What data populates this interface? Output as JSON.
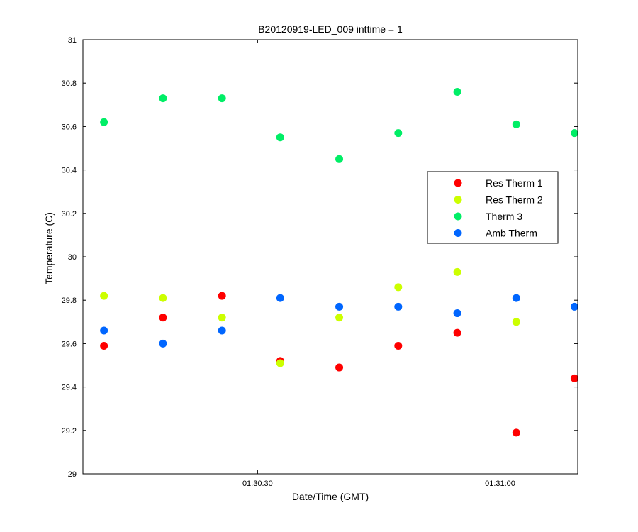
{
  "chart_data": {
    "type": "scatter",
    "title": "B20120919-LED_009 inttime = 1",
    "xlabel": "Date/Time (GMT)",
    "ylabel": "Temperature (C)",
    "ylim": [
      29,
      31
    ],
    "yticks": [
      29,
      29.2,
      29.4,
      29.6,
      29.8,
      30,
      30.2,
      30.4,
      30.6,
      30.8,
      31
    ],
    "ytick_labels": [
      "29",
      "29.2",
      "29.4",
      "29.6",
      "29.8",
      "30",
      "30.2",
      "30.4",
      "30.6",
      "30.8",
      "31"
    ],
    "xlim": [
      "01:30:08.4",
      "01:31:09.6"
    ],
    "xticks": [
      "01:30:30",
      "01:31:00"
    ],
    "xtick_labels": [
      "01:30:30",
      "01:31:00"
    ],
    "x": [
      "01:30:11",
      "01:30:18.3",
      "01:30:25.6",
      "01:30:32.8",
      "01:30:40.1",
      "01:30:47.4",
      "01:30:54.7",
      "01:31:02",
      "01:31:09.2"
    ],
    "legend_position": "right",
    "grid": false,
    "series": [
      {
        "name": "Res Therm 1",
        "color": "#ff0000",
        "values": [
          29.59,
          29.72,
          29.82,
          29.52,
          29.49,
          29.59,
          29.65,
          29.19,
          29.44
        ]
      },
      {
        "name": "Res Therm 2",
        "color": "#ccff00",
        "values": [
          29.82,
          29.81,
          29.72,
          29.51,
          29.72,
          29.86,
          29.93,
          29.7,
          null
        ]
      },
      {
        "name": "Therm 3",
        "color": "#00ee66",
        "values": [
          30.62,
          30.73,
          30.73,
          30.55,
          30.45,
          30.57,
          30.76,
          30.61,
          30.57
        ]
      },
      {
        "name": "Amb Therm",
        "color": "#0066ff",
        "values": [
          29.66,
          29.6,
          29.66,
          29.81,
          29.77,
          29.77,
          29.74,
          29.81,
          29.77
        ]
      }
    ]
  }
}
